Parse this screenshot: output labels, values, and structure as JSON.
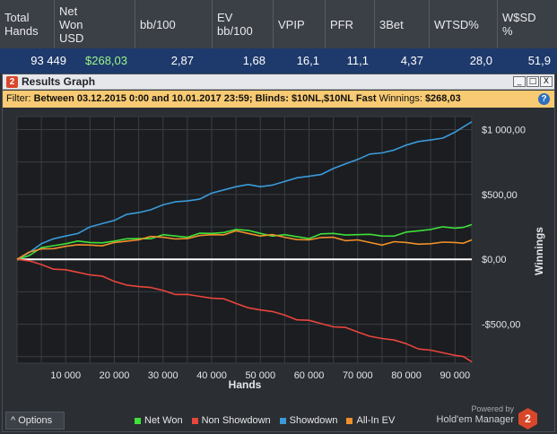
{
  "stats": {
    "headers": [
      "Total\nHands",
      "Net\nWon\nUSD",
      "bb/100",
      "EV\nbb/100",
      "VPIP",
      "PFR",
      "3Bet",
      "WTSD%",
      "W$SD\n%"
    ],
    "values": [
      "93 449",
      "$268,03",
      "2,87",
      "1,68",
      "16,1",
      "11,1",
      "4,37",
      "28,0",
      "51,9"
    ]
  },
  "window": {
    "title": "Results Graph",
    "logo": "2",
    "buttons": {
      "minimize": "_",
      "maximize": "□",
      "close": "X"
    }
  },
  "filter": {
    "label": "Filter:",
    "text": "Between 03.12.2015 0:00 and 10.01.2017 23:59; Blinds: $10NL,$10NL Fast",
    "winnings_label": "Winnings:",
    "winnings_value": "$268,03",
    "help": "?"
  },
  "bottom": {
    "options_label": "^   Options",
    "powered_by": "Powered by",
    "brand": "Hold'em Manager",
    "brand_badge": "2"
  },
  "colors": {
    "net_won": "#3ee03a",
    "non_showdown": "#e8453c",
    "showdown": "#3a9ad9",
    "all_in_ev": "#f0902a",
    "plot_bg": "#1b1d20",
    "grid": "#3a3e44",
    "zero_line": "#ffffff"
  },
  "chart_data": {
    "type": "line",
    "xlabel": "Hands",
    "ylabel": "Winnings",
    "xlim": [
      0,
      93449
    ],
    "ylim": [
      -800,
      1100
    ],
    "x_ticks": [
      10000,
      20000,
      30000,
      40000,
      50000,
      60000,
      70000,
      80000,
      90000
    ],
    "x_tick_labels": [
      "10 000",
      "20 000",
      "30 000",
      "40 000",
      "50 000",
      "60 000",
      "70 000",
      "80 000",
      "90 000"
    ],
    "y_ticks": [
      1000,
      500,
      0,
      -500
    ],
    "y_tick_labels": [
      "$1 000,00",
      "$500,00",
      "$0,00",
      "-$500,00"
    ],
    "grid": true,
    "legend": "bottom",
    "x": [
      0,
      5000,
      10000,
      15000,
      20000,
      25000,
      30000,
      35000,
      40000,
      45000,
      50000,
      55000,
      60000,
      65000,
      70000,
      75000,
      80000,
      85000,
      90000,
      93449
    ],
    "series": [
      {
        "name": "Net Won",
        "color_key": "net_won",
        "values": [
          0,
          90,
          120,
          130,
          140,
          160,
          190,
          170,
          200,
          230,
          200,
          190,
          160,
          200,
          190,
          180,
          210,
          230,
          240,
          268
        ]
      },
      {
        "name": "Non Showdown",
        "color_key": "non_showdown",
        "values": [
          0,
          -40,
          -80,
          -120,
          -170,
          -210,
          -240,
          -270,
          -300,
          -340,
          -390,
          -430,
          -470,
          -520,
          -560,
          -610,
          -650,
          -700,
          -740,
          -790
        ]
      },
      {
        "name": "Showdown",
        "color_key": "showdown",
        "values": [
          0,
          120,
          180,
          250,
          300,
          360,
          420,
          450,
          510,
          560,
          560,
          600,
          640,
          700,
          770,
          820,
          880,
          920,
          980,
          1060
        ]
      },
      {
        "name": "All-In EV",
        "color_key": "all_in_ev",
        "values": [
          0,
          80,
          100,
          110,
          130,
          150,
          170,
          160,
          190,
          220,
          180,
          170,
          150,
          170,
          150,
          110,
          130,
          120,
          130,
          150
        ]
      }
    ]
  }
}
